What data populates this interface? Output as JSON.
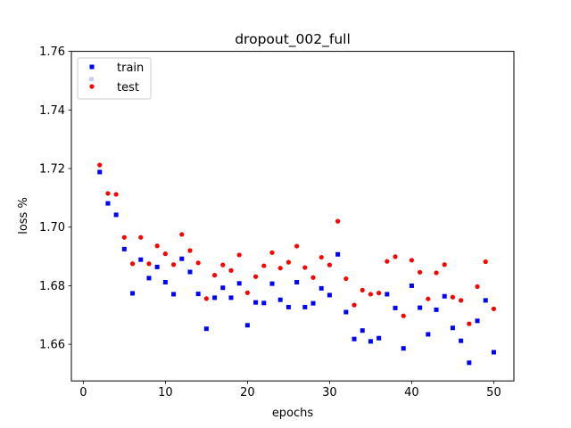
{
  "chart_data": {
    "type": "scatter",
    "title": "dropout_002_full",
    "xlabel": "epochs",
    "ylabel": "loss %",
    "xlim": [
      -1.45,
      52.45
    ],
    "ylim": [
      1.6475,
      1.76
    ],
    "x_ticks": [
      0,
      10,
      20,
      30,
      40,
      50
    ],
    "x_tick_labels": [
      "0",
      "10",
      "20",
      "30",
      "40",
      "50"
    ],
    "y_ticks": [
      1.66,
      1.68,
      1.7,
      1.72,
      1.74,
      1.76
    ],
    "y_tick_labels": [
      "1.66",
      "1.68",
      "1.70",
      "1.72",
      "1.74",
      "1.76"
    ],
    "grid": false,
    "legend_position": "upper-left",
    "series": [
      {
        "name": "train",
        "color": "#0000ff",
        "marker": "square",
        "x": [
          1,
          2,
          3,
          4,
          5,
          6,
          7,
          8,
          9,
          10,
          11,
          12,
          13,
          14,
          15,
          16,
          17,
          18,
          19,
          20,
          21,
          22,
          23,
          24,
          25,
          26,
          27,
          28,
          29,
          30,
          31,
          32,
          33,
          34,
          35,
          36,
          37,
          38,
          39,
          40,
          41,
          42,
          43,
          44,
          45,
          46,
          47,
          48,
          49,
          50
        ],
        "values": [
          1.7505,
          1.7188,
          1.7081,
          1.7042,
          1.6925,
          1.6774,
          1.6889,
          1.6826,
          1.6864,
          1.6812,
          1.6771,
          1.6892,
          1.6847,
          1.6772,
          1.6653,
          1.6759,
          1.6793,
          1.6759,
          1.6808,
          1.6665,
          1.6743,
          1.6741,
          1.6807,
          1.6752,
          1.6727,
          1.6812,
          1.6727,
          1.674,
          1.6791,
          1.6768,
          1.6907,
          1.671,
          1.6618,
          1.6647,
          1.661,
          1.6621,
          1.6771,
          1.6724,
          1.6586,
          1.68,
          1.6725,
          1.6634,
          1.6718,
          1.6764,
          1.6656,
          1.6612,
          1.6537,
          1.668,
          1.675,
          1.6573
        ]
      },
      {
        "name": "test",
        "color": "#ff0000",
        "marker": "circle",
        "x": [
          2,
          3,
          4,
          5,
          6,
          7,
          8,
          9,
          10,
          11,
          12,
          13,
          14,
          15,
          16,
          17,
          18,
          19,
          20,
          21,
          22,
          23,
          24,
          25,
          26,
          27,
          28,
          29,
          30,
          31,
          32,
          33,
          34,
          35,
          36,
          37,
          38,
          39,
          40,
          41,
          42,
          43,
          44,
          45,
          46,
          47,
          48,
          49,
          50
        ],
        "values": [
          1.7212,
          1.7115,
          1.7112,
          1.6965,
          1.6875,
          1.6965,
          1.6875,
          1.6936,
          1.6909,
          1.6872,
          1.6975,
          1.692,
          1.6878,
          1.6756,
          1.6836,
          1.6871,
          1.6852,
          1.6905,
          1.6776,
          1.6831,
          1.6868,
          1.6913,
          1.686,
          1.688,
          1.6935,
          1.6862,
          1.6828,
          1.6897,
          1.6871,
          1.702,
          1.6824,
          1.6734,
          1.6785,
          1.6771,
          1.6775,
          1.6883,
          1.6899,
          1.6697,
          1.6887,
          1.6846,
          1.6755,
          1.6844,
          1.6872,
          1.6761,
          1.675,
          1.667,
          1.6797,
          1.6882,
          1.6721
        ]
      }
    ]
  }
}
